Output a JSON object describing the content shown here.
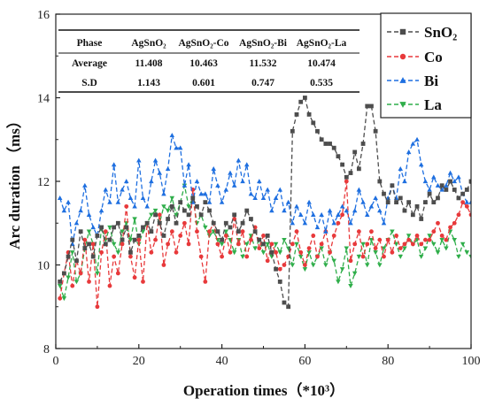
{
  "chart_data": {
    "type": "line",
    "xlabel": "Operation times（*10³）",
    "ylabel": "Arc duration （ms）",
    "xlim": [
      0,
      100
    ],
    "ylim": [
      8,
      16
    ],
    "xticks": [
      "0",
      "20",
      "40",
      "60",
      "80",
      "100"
    ],
    "yticks": [
      "8",
      "10",
      "12",
      "14",
      "16"
    ],
    "grid": false,
    "legend": "top-right",
    "colors": {
      "SnO2": "#4d4d4d",
      "Co": "#e8393b",
      "Bi": "#1e6fe0",
      "La": "#2fae4a"
    },
    "series": [
      {
        "name": "SnO₂",
        "marker": "square",
        "x": [
          1,
          2,
          3,
          4,
          5,
          6,
          7,
          8,
          9,
          10,
          11,
          12,
          13,
          14,
          15,
          16,
          17,
          18,
          19,
          20,
          21,
          22,
          23,
          24,
          25,
          26,
          27,
          28,
          29,
          30,
          31,
          32,
          33,
          34,
          35,
          36,
          37,
          38,
          39,
          40,
          41,
          42,
          43,
          44,
          45,
          46,
          47,
          48,
          49,
          50,
          51,
          52,
          53,
          54,
          55,
          56,
          57,
          58,
          59,
          60,
          61,
          62,
          63,
          64,
          65,
          66,
          67,
          68,
          69,
          70,
          71,
          72,
          73,
          74,
          75,
          76,
          77,
          78,
          79,
          80,
          81,
          82,
          83,
          84,
          85,
          86,
          87,
          88,
          89,
          90,
          91,
          92,
          93,
          94,
          95,
          96,
          97,
          98,
          99,
          100
        ],
        "y": [
          9.6,
          9.8,
          10.2,
          10.6,
          10.1,
          10.8,
          10.4,
          10.5,
          10.2,
          10.7,
          10.9,
          10.5,
          10.6,
          10.9,
          11.0,
          10.6,
          10.9,
          10.3,
          10.6,
          10.7,
          10.9,
          11.0,
          10.8,
          11.2,
          11.0,
          10.7,
          11.1,
          11.4,
          11.0,
          11.5,
          11.3,
          11.2,
          11.6,
          11.4,
          11.2,
          11.5,
          11.3,
          11.0,
          10.8,
          10.6,
          11.0,
          10.9,
          11.2,
          10.8,
          11.0,
          11.3,
          11.1,
          10.8,
          10.6,
          10.5,
          10.7,
          10.3,
          9.9,
          9.6,
          9.1,
          9.0,
          13.2,
          13.6,
          13.9,
          14.0,
          13.6,
          13.4,
          13.2,
          13.0,
          12.9,
          12.9,
          12.8,
          12.6,
          12.4,
          12.1,
          12.2,
          12.7,
          12.3,
          12.9,
          13.8,
          13.8,
          13.2,
          12.0,
          11.7,
          11.5,
          11.9,
          11.5,
          11.6,
          11.3,
          11.5,
          11.2,
          11.4,
          11.1,
          11.5,
          11.7,
          11.5,
          11.6,
          11.9,
          11.8,
          12.0,
          11.8,
          11.6,
          11.7,
          11.8,
          12.0
        ]
      },
      {
        "name": "Co",
        "marker": "circle",
        "x": [
          1,
          2,
          3,
          4,
          5,
          6,
          7,
          8,
          9,
          10,
          11,
          12,
          13,
          14,
          15,
          16,
          17,
          18,
          19,
          20,
          21,
          22,
          23,
          24,
          25,
          26,
          27,
          28,
          29,
          30,
          31,
          32,
          33,
          34,
          35,
          36,
          37,
          38,
          39,
          40,
          41,
          42,
          43,
          44,
          45,
          46,
          47,
          48,
          49,
          50,
          51,
          52,
          53,
          54,
          55,
          56,
          57,
          58,
          59,
          60,
          61,
          62,
          63,
          64,
          65,
          66,
          67,
          68,
          69,
          70,
          71,
          72,
          73,
          74,
          75,
          76,
          77,
          78,
          79,
          80,
          81,
          82,
          83,
          84,
          85,
          86,
          87,
          88,
          89,
          90,
          91,
          92,
          93,
          94,
          95,
          96,
          97,
          98,
          99,
          100
        ],
        "y": [
          9.2,
          9.8,
          10.3,
          9.5,
          10.1,
          9.8,
          10.6,
          9.6,
          10.5,
          9.0,
          10.3,
          10.8,
          9.5,
          10.2,
          9.8,
          10.5,
          11.4,
          10.2,
          9.7,
          10.6,
          9.6,
          11.0,
          10.3,
          10.6,
          11.2,
          10.0,
          10.5,
          10.8,
          10.3,
          10.7,
          11.0,
          10.5,
          11.8,
          10.8,
          10.2,
          9.6,
          10.8,
          11.0,
          10.5,
          10.2,
          10.7,
          10.3,
          11.1,
          10.5,
          10.8,
          10.2,
          10.6,
          10.9,
          10.4,
          10.7,
          10.1,
          10.5,
          10.3,
          9.9,
          10.0,
          10.2,
          10.5,
          10.8,
          10.3,
          10.0,
          10.4,
          10.7,
          10.2,
          10.5,
          10.8,
          10.3,
          10.7,
          11.0,
          11.2,
          12.0,
          10.1,
          10.5,
          10.8,
          10.2,
          10.5,
          10.8,
          10.4,
          10.6,
          10.2,
          10.6,
          10.3,
          10.7,
          10.4,
          10.5,
          10.6,
          10.5,
          10.7,
          10.5,
          10.6,
          10.6,
          10.8,
          11.0,
          10.7,
          10.6,
          10.9,
          11.0,
          11.2,
          11.5,
          11.4,
          11.2
        ]
      },
      {
        "name": "Bi",
        "marker": "triangle",
        "x": [
          1,
          2,
          3,
          4,
          5,
          6,
          7,
          8,
          9,
          10,
          11,
          12,
          13,
          14,
          15,
          16,
          17,
          18,
          19,
          20,
          21,
          22,
          23,
          24,
          25,
          26,
          27,
          28,
          29,
          30,
          31,
          32,
          33,
          34,
          35,
          36,
          37,
          38,
          39,
          40,
          41,
          42,
          43,
          44,
          45,
          46,
          47,
          48,
          49,
          50,
          51,
          52,
          53,
          54,
          55,
          56,
          57,
          58,
          59,
          60,
          61,
          62,
          63,
          64,
          65,
          66,
          67,
          68,
          69,
          70,
          71,
          72,
          73,
          74,
          75,
          76,
          77,
          78,
          79,
          80,
          81,
          82,
          83,
          84,
          85,
          86,
          87,
          88,
          89,
          90,
          91,
          92,
          93,
          94,
          95,
          96,
          97,
          98,
          99,
          100
        ],
        "y": [
          11.6,
          11.3,
          11.5,
          10.5,
          11.0,
          11.3,
          11.9,
          11.2,
          10.9,
          10.7,
          11.3,
          11.8,
          11.5,
          12.4,
          11.5,
          11.8,
          12.0,
          11.6,
          11.4,
          12.5,
          11.6,
          11.4,
          12.0,
          12.5,
          12.2,
          11.7,
          12.3,
          13.1,
          12.8,
          12.8,
          11.9,
          12.4,
          11.5,
          12.0,
          11.7,
          11.7,
          11.5,
          12.3,
          11.9,
          11.5,
          11.8,
          12.2,
          11.9,
          12.5,
          12.0,
          12.4,
          11.7,
          11.6,
          12.0,
          11.6,
          11.8,
          11.3,
          11.6,
          11.8,
          11.3,
          11.5,
          11.0,
          11.4,
          11.2,
          11.0,
          11.5,
          11.2,
          10.9,
          11.2,
          10.8,
          11.3,
          11.0,
          11.2,
          11.4,
          11.3,
          11.0,
          11.3,
          11.8,
          11.5,
          11.2,
          11.4,
          11.6,
          11.3,
          11.0,
          11.6,
          11.9,
          11.6,
          12.3,
          12.0,
          12.7,
          12.9,
          13.0,
          12.4,
          12.0,
          11.8,
          12.1,
          11.9,
          11.8,
          11.9,
          12.2,
          12.0,
          12.1,
          11.7,
          11.5,
          11.5
        ]
      },
      {
        "name": "La",
        "marker": "triangle-down",
        "x": [
          1,
          2,
          3,
          4,
          5,
          6,
          7,
          8,
          9,
          10,
          11,
          12,
          13,
          14,
          15,
          16,
          17,
          18,
          19,
          20,
          21,
          22,
          23,
          24,
          25,
          26,
          27,
          28,
          29,
          30,
          31,
          32,
          33,
          34,
          35,
          36,
          37,
          38,
          39,
          40,
          41,
          42,
          43,
          44,
          45,
          46,
          47,
          48,
          49,
          50,
          51,
          52,
          53,
          54,
          55,
          56,
          57,
          58,
          59,
          60,
          61,
          62,
          63,
          64,
          65,
          66,
          67,
          68,
          69,
          70,
          71,
          72,
          73,
          74,
          75,
          76,
          77,
          78,
          79,
          80,
          81,
          82,
          83,
          84,
          85,
          86,
          87,
          88,
          89,
          90,
          91,
          92,
          93,
          94,
          95,
          96,
          97,
          98,
          99,
          100
        ],
        "y": [
          9.5,
          9.2,
          9.7,
          10.3,
          9.6,
          9.8,
          10.4,
          10.8,
          10.5,
          9.8,
          10.9,
          10.6,
          10.9,
          10.5,
          10.3,
          10.8,
          11.0,
          10.6,
          11.1,
          10.5,
          10.8,
          11.0,
          11.2,
          11.3,
          11.0,
          11.4,
          11.3,
          11.6,
          11.2,
          11.5,
          11.9,
          11.4,
          11.6,
          11.0,
          11.2,
          10.9,
          10.7,
          10.8,
          10.6,
          10.5,
          10.8,
          10.6,
          10.3,
          10.6,
          10.2,
          10.5,
          10.7,
          10.4,
          10.6,
          10.3,
          10.5,
          10.2,
          10.5,
          10.3,
          10.6,
          10.4,
          10.0,
          10.5,
          10.2,
          9.9,
          10.3,
          10.0,
          10.2,
          10.4,
          10.0,
          10.3,
          10.1,
          9.6,
          9.9,
          10.4,
          9.5,
          9.8,
          10.2,
          10.5,
          10.0,
          10.6,
          10.3,
          10.0,
          10.4,
          10.6,
          10.8,
          10.5,
          10.2,
          10.4,
          10.7,
          10.5,
          10.6,
          10.2,
          10.4,
          10.7,
          10.5,
          10.3,
          10.6,
          10.4,
          10.8,
          10.6,
          10.2,
          10.5,
          10.3,
          10.2
        ]
      }
    ]
  },
  "stats_table": {
    "headers": [
      "Phase",
      "AgSnO₂",
      "AgSnO₂-Co",
      "AgSnO₂-Bi",
      "AgSnO₂-La"
    ],
    "rows": [
      [
        "Average",
        "11.408",
        "10.463",
        "11.532",
        "10.474"
      ],
      [
        "S.D",
        "1.143",
        "0.601",
        "0.747",
        "0.535"
      ]
    ]
  }
}
